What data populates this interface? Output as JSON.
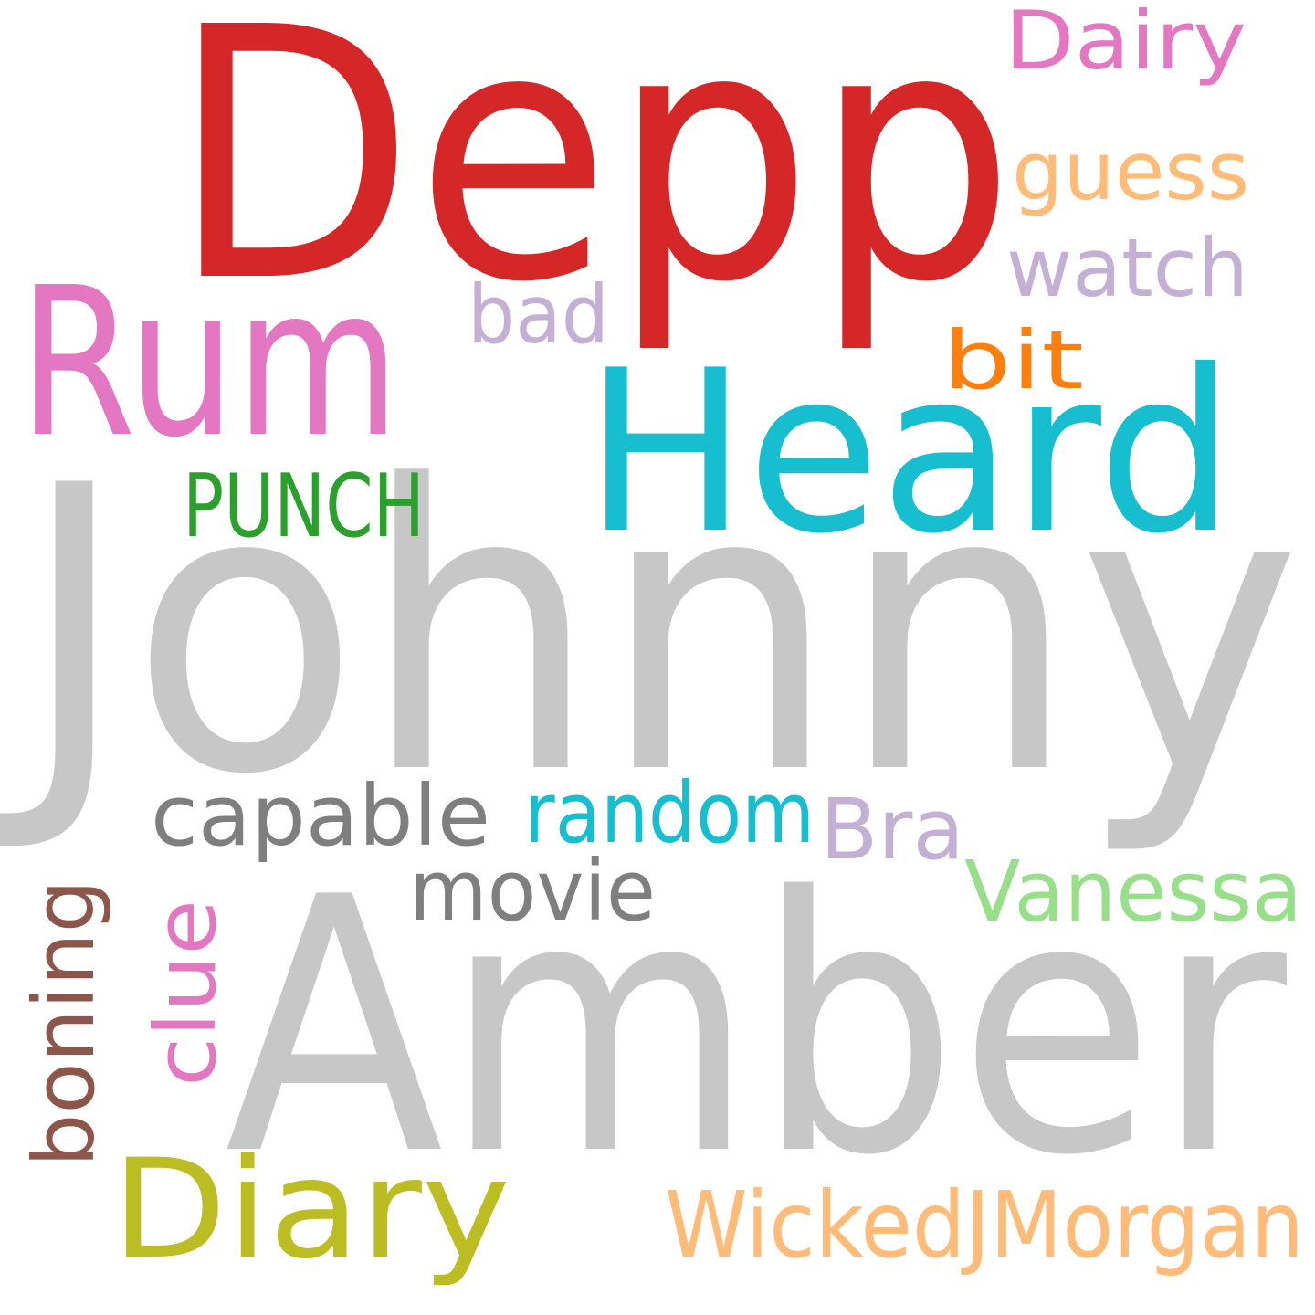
{
  "words": [
    {
      "id": "depp",
      "text": "Depp",
      "color": "#d62728",
      "orientation": "horizontal"
    },
    {
      "id": "johnny",
      "text": "Johnny",
      "color": "#c7c7c7",
      "orientation": "horizontal"
    },
    {
      "id": "amber",
      "text": "Amber",
      "color": "#c7c7c7",
      "orientation": "horizontal"
    },
    {
      "id": "heard",
      "text": "Heard",
      "color": "#17becf",
      "orientation": "horizontal"
    },
    {
      "id": "rum",
      "text": "Rum",
      "color": "#e377c2",
      "orientation": "horizontal"
    },
    {
      "id": "diary",
      "text": "Diary",
      "color": "#bcbd22",
      "orientation": "horizontal"
    },
    {
      "id": "wickedjmorgan",
      "text": "WickedJMorgan",
      "color": "#ffbb78",
      "orientation": "horizontal"
    },
    {
      "id": "punch",
      "text": "PUNCH",
      "color": "#2ca02c",
      "orientation": "horizontal"
    },
    {
      "id": "capable",
      "text": "capable",
      "color": "#7f7f7f",
      "orientation": "horizontal"
    },
    {
      "id": "random",
      "text": "random",
      "color": "#17becf",
      "orientation": "horizontal"
    },
    {
      "id": "bra",
      "text": "Bra",
      "color": "#c5b0d5",
      "orientation": "horizontal"
    },
    {
      "id": "movie",
      "text": "movie",
      "color": "#7f7f7f",
      "orientation": "horizontal"
    },
    {
      "id": "vanessa",
      "text": "Vanessa",
      "color": "#98df8a",
      "orientation": "horizontal"
    },
    {
      "id": "boning",
      "text": "boning",
      "color": "#8c564b",
      "orientation": "vertical"
    },
    {
      "id": "clue",
      "text": "clue",
      "color": "#e377c2",
      "orientation": "vertical"
    },
    {
      "id": "dairy",
      "text": "Dairy",
      "color": "#e377c2",
      "orientation": "horizontal"
    },
    {
      "id": "guess",
      "text": "guess",
      "color": "#ffbb78",
      "orientation": "horizontal"
    },
    {
      "id": "watch",
      "text": "watch",
      "color": "#c5b0d5",
      "orientation": "horizontal"
    },
    {
      "id": "bad",
      "text": "bad",
      "color": "#c5b0d5",
      "orientation": "horizontal"
    },
    {
      "id": "bit",
      "text": "bit",
      "color": "#ff7f0e",
      "orientation": "horizontal"
    }
  ]
}
